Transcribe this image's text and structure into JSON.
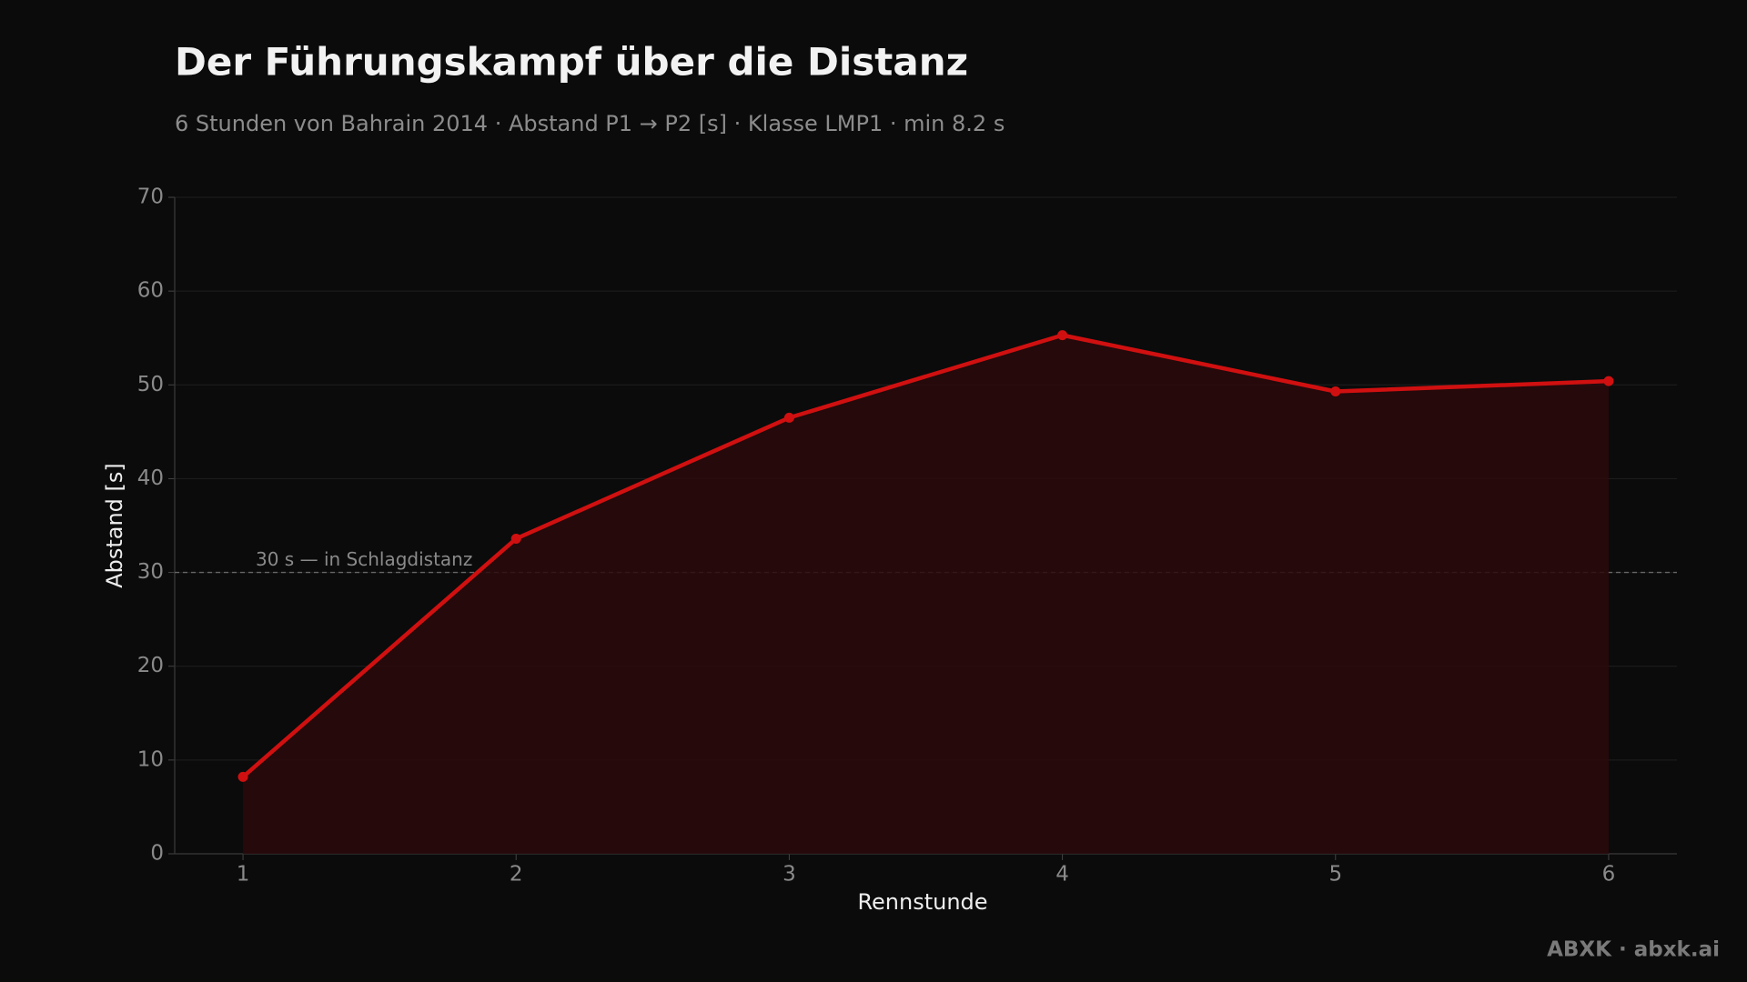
{
  "chart_data": {
    "type": "line",
    "title": "Der Führungskampf über die Distanz",
    "subtitle": "6 Stunden von Bahrain 2014 · Abstand P1 → P2 [s] · Klasse LMP1 · min 8.2 s",
    "x_label": "Rennstunde",
    "y_label": "Abstand [s]",
    "x": [
      1,
      2,
      3,
      4,
      5,
      6
    ],
    "values": [
      8.2,
      33.6,
      46.5,
      55.3,
      49.3,
      50.4
    ],
    "color": "#d01010",
    "area_color": "#2a090c",
    "xlim": [
      0.75,
      6.25
    ],
    "xticks": [
      1,
      2,
      3,
      4,
      5,
      6
    ],
    "ylim": [
      0,
      70
    ],
    "yticks": [
      0,
      10,
      20,
      30,
      40,
      50,
      60,
      70
    ],
    "grid": true,
    "reference_line": {
      "value": 30,
      "label": "30 s — in Schlagdistanz"
    }
  },
  "footer": "ABXK · abxk.ai"
}
